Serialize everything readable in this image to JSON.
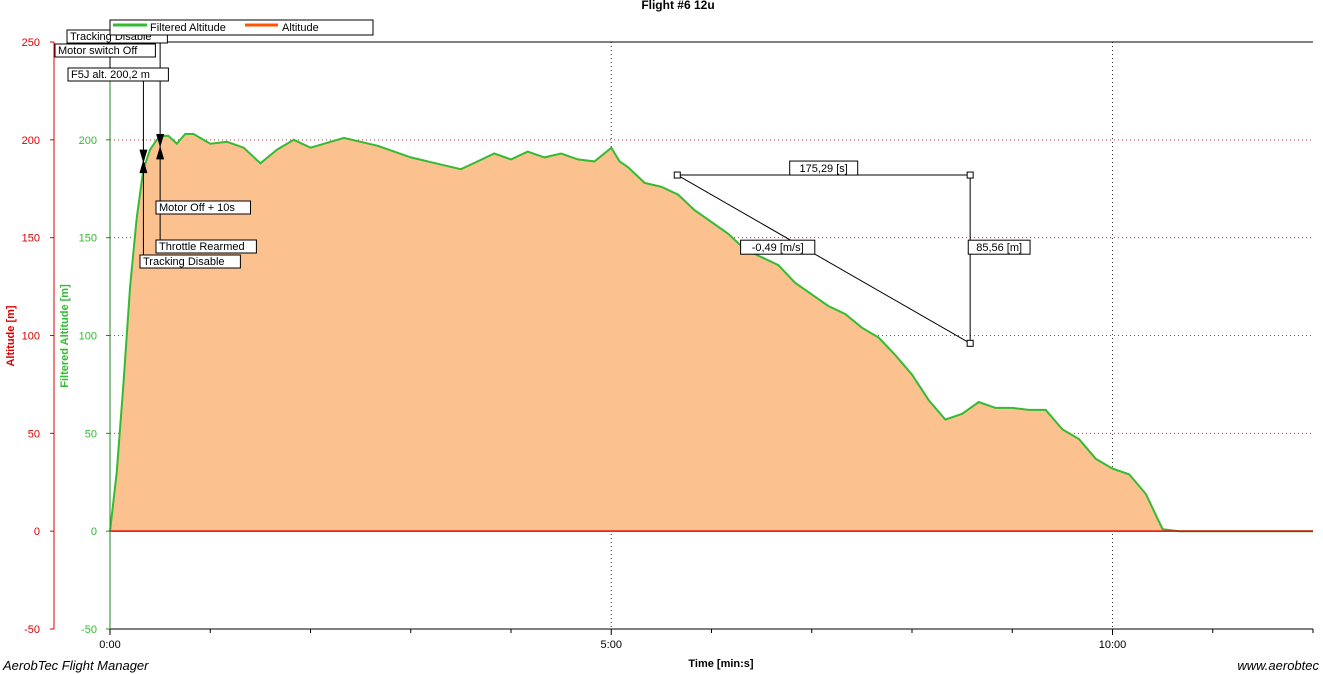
{
  "chart_data": {
    "type": "area",
    "title": "Flight #6  12u",
    "xlabel": "Time [min:s]",
    "ylabel": "Altitude [m]",
    "ylabel2": "Filtered Altitude [m]",
    "xlim": [
      0,
      720
    ],
    "ylim": [
      -50,
      250
    ],
    "x_ticks": [
      {
        "value": 0,
        "label": "0:00"
      },
      {
        "value": 300,
        "label": "5:00"
      },
      {
        "value": 600,
        "label": "10:00"
      }
    ],
    "y_ticks": [
      {
        "value": 250,
        "label": "250"
      },
      {
        "value": 200,
        "label": "200"
      },
      {
        "value": 150,
        "label": "150"
      },
      {
        "value": 100,
        "label": "100"
      },
      {
        "value": 50,
        "label": "50"
      },
      {
        "value": 0,
        "label": "0"
      },
      {
        "value": -50,
        "label": "-50"
      }
    ],
    "grid": true,
    "legend_position": "top-left",
    "colors": {
      "filtered": "#33bb33",
      "altitude": "#ff5500",
      "fill": "#fbc290",
      "axis_left": "#dd0000",
      "zero_line": "#ee0000"
    },
    "series": [
      {
        "name": "Filtered Altitude",
        "x": [
          0,
          4,
          8,
          12,
          16,
          20,
          24,
          28,
          32,
          35,
          40,
          45,
          50,
          60,
          70,
          80,
          90,
          100,
          110,
          120,
          140,
          160,
          180,
          200,
          210,
          220,
          230,
          240,
          250,
          260,
          270,
          280,
          290,
          300,
          305,
          310,
          320,
          330,
          340,
          350,
          360,
          370,
          380,
          390,
          400,
          410,
          420,
          430,
          440,
          450,
          460,
          470,
          480,
          490,
          500,
          510,
          520,
          530,
          540,
          550,
          560,
          570,
          580,
          590,
          600,
          610,
          620,
          630,
          640,
          650,
          660,
          670,
          680,
          690,
          700,
          710,
          720
        ],
        "values": [
          0,
          30,
          75,
          125,
          160,
          185,
          195,
          200,
          202,
          202,
          198,
          203,
          203,
          198,
          199,
          196,
          188,
          195,
          200,
          196,
          201,
          197,
          191,
          187,
          185,
          189,
          193,
          190,
          194,
          191,
          193,
          190,
          189,
          196,
          189,
          186,
          178,
          176,
          172,
          164,
          158,
          152,
          144,
          140,
          136,
          127,
          121,
          115,
          111,
          104,
          99,
          90,
          80,
          67,
          57,
          60,
          66,
          63,
          63,
          62,
          62,
          52,
          47,
          37,
          32,
          29,
          19,
          1,
          0,
          0,
          0,
          0,
          0,
          0,
          0,
          0,
          0
        ]
      },
      {
        "name": "Altitude",
        "x": [
          0,
          720
        ],
        "values": [
          0,
          0
        ]
      }
    ],
    "annotations": [
      {
        "label": "Tracking Disable",
        "x": 30
      },
      {
        "label": "Motor switch Off",
        "x": 20
      },
      {
        "label": "F5J alt. 200,2 m",
        "x": 20
      },
      {
        "label": "Motor Off + 10s",
        "x": 30
      },
      {
        "label": "Throttle Rearmed",
        "x": 30
      },
      {
        "label": "Tracking Disable",
        "x": 20
      }
    ],
    "measurement": {
      "x1": 339.5,
      "y1": 182,
      "x2": 514.8,
      "y2": 96,
      "dt_label": "175,29 [s]",
      "slope_label": "-0,49 [m/s]",
      "dh_label": "85,56 [m]"
    }
  },
  "footer": {
    "left": "AerobTec Flight Manager",
    "right": "www.aerobtec"
  }
}
